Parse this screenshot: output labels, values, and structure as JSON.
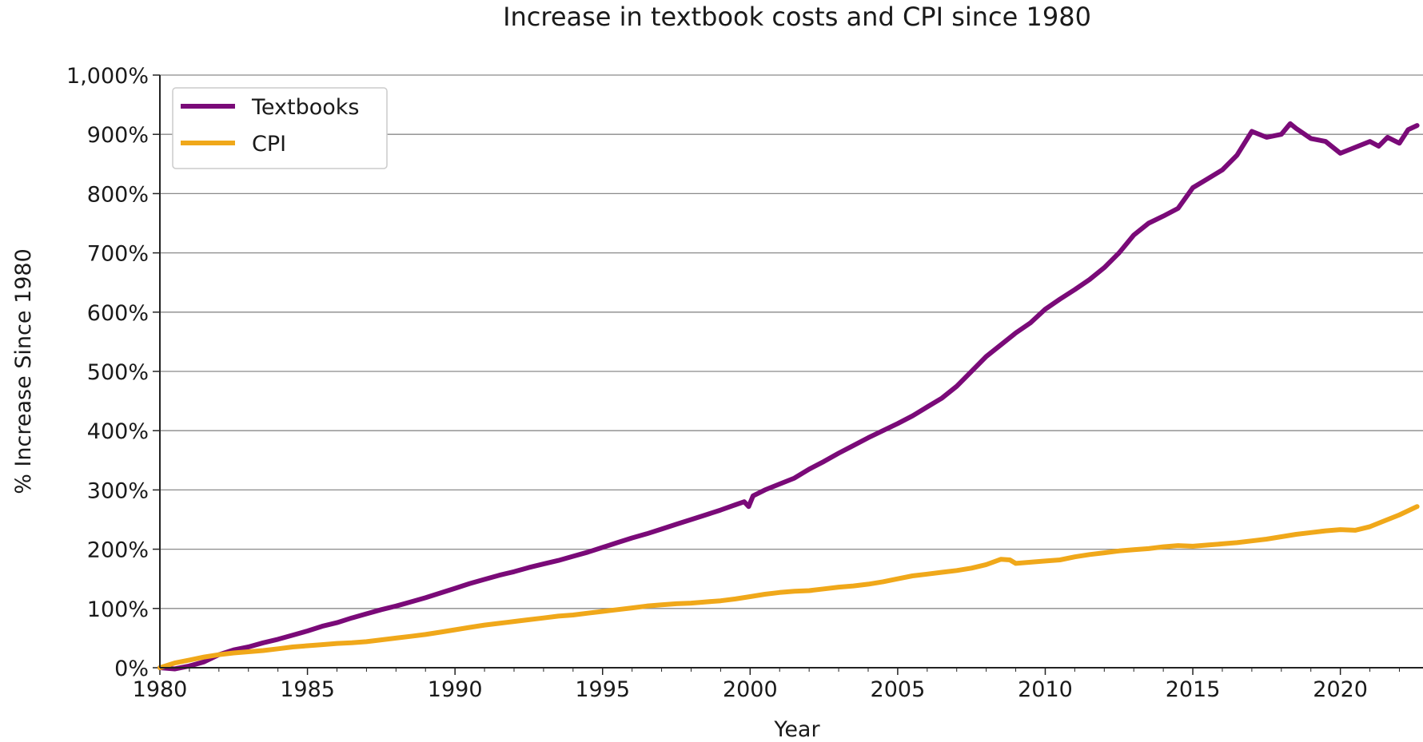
{
  "chart_data": {
    "type": "line",
    "title": "Increase in textbook costs and CPI since 1980",
    "xlabel": "Year",
    "ylabel": "% Increase Since 1980",
    "xlim": [
      1980,
      2022.8
    ],
    "ylim": [
      0,
      1000
    ],
    "x_ticks": [
      1980,
      1985,
      1990,
      1995,
      2000,
      2005,
      2010,
      2015,
      2020
    ],
    "y_ticks": [
      0,
      100,
      200,
      300,
      400,
      500,
      600,
      700,
      800,
      900,
      1000
    ],
    "y_tick_labels": [
      "0%",
      "100%",
      "200%",
      "300%",
      "400%",
      "500%",
      "600%",
      "700%",
      "800%",
      "900%",
      "1,000%"
    ],
    "grid": "horizontal",
    "legend_position": "top-left",
    "series": [
      {
        "name": "Textbooks",
        "color": "#7a0a78",
        "points": [
          [
            1980.0,
            0
          ],
          [
            1980.5,
            -2
          ],
          [
            1981.0,
            3
          ],
          [
            1981.5,
            10
          ],
          [
            1982.0,
            22
          ],
          [
            1982.5,
            30
          ],
          [
            1983.0,
            35
          ],
          [
            1983.5,
            42
          ],
          [
            1984.0,
            48
          ],
          [
            1984.5,
            55
          ],
          [
            1985.0,
            62
          ],
          [
            1985.5,
            70
          ],
          [
            1986.0,
            76
          ],
          [
            1986.5,
            84
          ],
          [
            1987.0,
            91
          ],
          [
            1987.5,
            98
          ],
          [
            1988.0,
            104
          ],
          [
            1988.5,
            111
          ],
          [
            1989.0,
            118
          ],
          [
            1989.5,
            126
          ],
          [
            1990.0,
            134
          ],
          [
            1990.5,
            142
          ],
          [
            1991.0,
            149
          ],
          [
            1991.5,
            156
          ],
          [
            1992.0,
            162
          ],
          [
            1992.5,
            169
          ],
          [
            1993.0,
            175
          ],
          [
            1993.5,
            181
          ],
          [
            1994.0,
            188
          ],
          [
            1994.5,
            195
          ],
          [
            1995.0,
            203
          ],
          [
            1995.5,
            211
          ],
          [
            1996.0,
            219
          ],
          [
            1996.5,
            226
          ],
          [
            1997.0,
            234
          ],
          [
            1997.5,
            242
          ],
          [
            1998.0,
            250
          ],
          [
            1998.5,
            258
          ],
          [
            1999.0,
            266
          ],
          [
            1999.5,
            275
          ],
          [
            1999.8,
            280
          ],
          [
            1999.95,
            272
          ],
          [
            2000.1,
            290
          ],
          [
            2000.5,
            300
          ],
          [
            2001.0,
            310
          ],
          [
            2001.5,
            320
          ],
          [
            2002.0,
            335
          ],
          [
            2002.5,
            348
          ],
          [
            2003.0,
            362
          ],
          [
            2003.5,
            375
          ],
          [
            2004.0,
            388
          ],
          [
            2004.5,
            400
          ],
          [
            2005.0,
            412
          ],
          [
            2005.5,
            425
          ],
          [
            2006.0,
            440
          ],
          [
            2006.5,
            455
          ],
          [
            2007.0,
            475
          ],
          [
            2007.5,
            500
          ],
          [
            2008.0,
            525
          ],
          [
            2008.5,
            545
          ],
          [
            2009.0,
            565
          ],
          [
            2009.5,
            582
          ],
          [
            2010.0,
            605
          ],
          [
            2010.5,
            622
          ],
          [
            2011.0,
            638
          ],
          [
            2011.5,
            655
          ],
          [
            2012.0,
            675
          ],
          [
            2012.5,
            700
          ],
          [
            2013.0,
            730
          ],
          [
            2013.5,
            750
          ],
          [
            2014.0,
            762
          ],
          [
            2014.5,
            775
          ],
          [
            2015.0,
            810
          ],
          [
            2015.5,
            825
          ],
          [
            2016.0,
            840
          ],
          [
            2016.5,
            865
          ],
          [
            2017.0,
            905
          ],
          [
            2017.5,
            895
          ],
          [
            2018.0,
            900
          ],
          [
            2018.3,
            918
          ],
          [
            2018.5,
            910
          ],
          [
            2019.0,
            893
          ],
          [
            2019.5,
            888
          ],
          [
            2020.0,
            868
          ],
          [
            2020.5,
            878
          ],
          [
            2021.0,
            888
          ],
          [
            2021.3,
            880
          ],
          [
            2021.6,
            895
          ],
          [
            2022.0,
            885
          ],
          [
            2022.3,
            908
          ],
          [
            2022.6,
            915
          ]
        ]
      },
      {
        "name": "CPI",
        "color": "#f0a81a",
        "points": [
          [
            1980.0,
            0
          ],
          [
            1980.5,
            8
          ],
          [
            1981.0,
            13
          ],
          [
            1981.5,
            18
          ],
          [
            1982.0,
            22
          ],
          [
            1982.5,
            25
          ],
          [
            1983.0,
            27
          ],
          [
            1983.5,
            29
          ],
          [
            1984.0,
            32
          ],
          [
            1984.5,
            35
          ],
          [
            1985.0,
            37
          ],
          [
            1985.5,
            39
          ],
          [
            1986.0,
            41
          ],
          [
            1986.5,
            42
          ],
          [
            1987.0,
            44
          ],
          [
            1987.5,
            47
          ],
          [
            1988.0,
            50
          ],
          [
            1988.5,
            53
          ],
          [
            1989.0,
            56
          ],
          [
            1989.5,
            60
          ],
          [
            1990.0,
            64
          ],
          [
            1990.5,
            68
          ],
          [
            1991.0,
            72
          ],
          [
            1991.5,
            75
          ],
          [
            1992.0,
            78
          ],
          [
            1992.5,
            81
          ],
          [
            1993.0,
            84
          ],
          [
            1993.5,
            87
          ],
          [
            1994.0,
            89
          ],
          [
            1994.5,
            92
          ],
          [
            1995.0,
            95
          ],
          [
            1995.5,
            98
          ],
          [
            1996.0,
            101
          ],
          [
            1996.5,
            104
          ],
          [
            1997.0,
            106
          ],
          [
            1997.5,
            108
          ],
          [
            1998.0,
            109
          ],
          [
            1998.5,
            111
          ],
          [
            1999.0,
            113
          ],
          [
            1999.5,
            116
          ],
          [
            2000.0,
            120
          ],
          [
            2000.5,
            124
          ],
          [
            2001.0,
            127
          ],
          [
            2001.5,
            129
          ],
          [
            2002.0,
            130
          ],
          [
            2002.5,
            133
          ],
          [
            2003.0,
            136
          ],
          [
            2003.5,
            138
          ],
          [
            2004.0,
            141
          ],
          [
            2004.5,
            145
          ],
          [
            2005.0,
            150
          ],
          [
            2005.5,
            155
          ],
          [
            2006.0,
            158
          ],
          [
            2006.5,
            161
          ],
          [
            2007.0,
            164
          ],
          [
            2007.5,
            168
          ],
          [
            2008.0,
            174
          ],
          [
            2008.5,
            183
          ],
          [
            2008.8,
            182
          ],
          [
            2009.0,
            176
          ],
          [
            2009.5,
            178
          ],
          [
            2010.0,
            180
          ],
          [
            2010.5,
            182
          ],
          [
            2011.0,
            187
          ],
          [
            2011.5,
            191
          ],
          [
            2012.0,
            194
          ],
          [
            2012.5,
            197
          ],
          [
            2013.0,
            199
          ],
          [
            2013.5,
            201
          ],
          [
            2014.0,
            204
          ],
          [
            2014.5,
            206
          ],
          [
            2015.0,
            205
          ],
          [
            2015.5,
            207
          ],
          [
            2016.0,
            209
          ],
          [
            2016.5,
            211
          ],
          [
            2017.0,
            214
          ],
          [
            2017.5,
            217
          ],
          [
            2018.0,
            221
          ],
          [
            2018.5,
            225
          ],
          [
            2019.0,
            228
          ],
          [
            2019.5,
            231
          ],
          [
            2020.0,
            233
          ],
          [
            2020.5,
            232
          ],
          [
            2021.0,
            238
          ],
          [
            2021.5,
            248
          ],
          [
            2022.0,
            258
          ],
          [
            2022.6,
            272
          ]
        ]
      }
    ]
  }
}
